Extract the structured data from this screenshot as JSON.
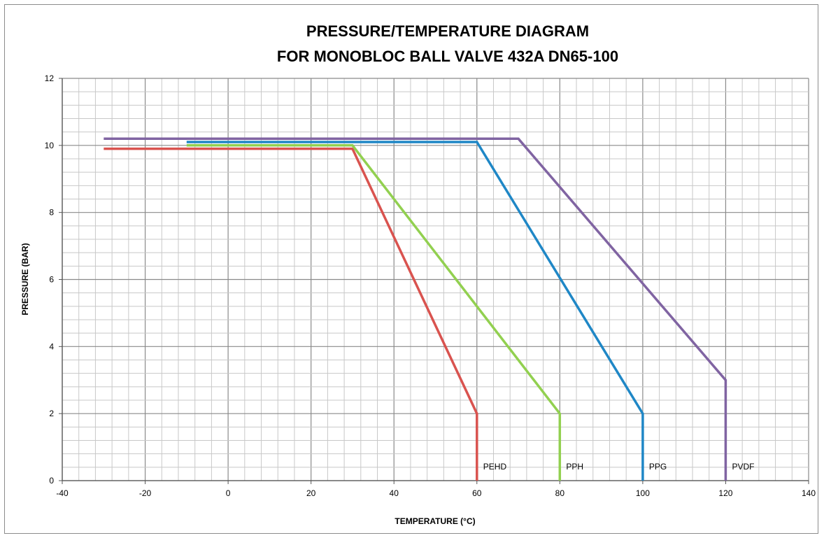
{
  "chart_data": {
    "type": "line",
    "title": "PRESSURE/TEMPERATURE DIAGRAM",
    "subtitle": "FOR MONOBLOC BALL VALVE 432A DN65-100",
    "xlabel": "TEMPERATURE (°C)",
    "ylabel": "PRESSURE (BAR)",
    "xlim": [
      -40,
      140
    ],
    "ylim": [
      0,
      12
    ],
    "x_ticks": [
      -40,
      -20,
      0,
      20,
      40,
      60,
      80,
      100,
      120,
      140
    ],
    "y_ticks": [
      0,
      2,
      4,
      6,
      8,
      10,
      12
    ],
    "x_minor_step": 4,
    "y_minor_step": 0.4,
    "grid": true,
    "legend": "none",
    "series": [
      {
        "name": "PEHD",
        "color": "#d9534f",
        "points": [
          [
            -30,
            9.9
          ],
          [
            30,
            9.9
          ],
          [
            60,
            2.0
          ],
          [
            60,
            0
          ]
        ]
      },
      {
        "name": "PPH",
        "color": "#92d050",
        "points": [
          [
            -10,
            10.0
          ],
          [
            30,
            10.0
          ],
          [
            80,
            2.0
          ],
          [
            80,
            0
          ]
        ]
      },
      {
        "name": "PPG",
        "color": "#1f87c6",
        "points": [
          [
            -10,
            10.1
          ],
          [
            60,
            10.1
          ],
          [
            100,
            2.0
          ],
          [
            100,
            0
          ]
        ]
      },
      {
        "name": "PVDF",
        "color": "#8064a2",
        "points": [
          [
            -30,
            10.2
          ],
          [
            70,
            10.2
          ],
          [
            120,
            3.0
          ],
          [
            120,
            0
          ]
        ]
      }
    ]
  }
}
